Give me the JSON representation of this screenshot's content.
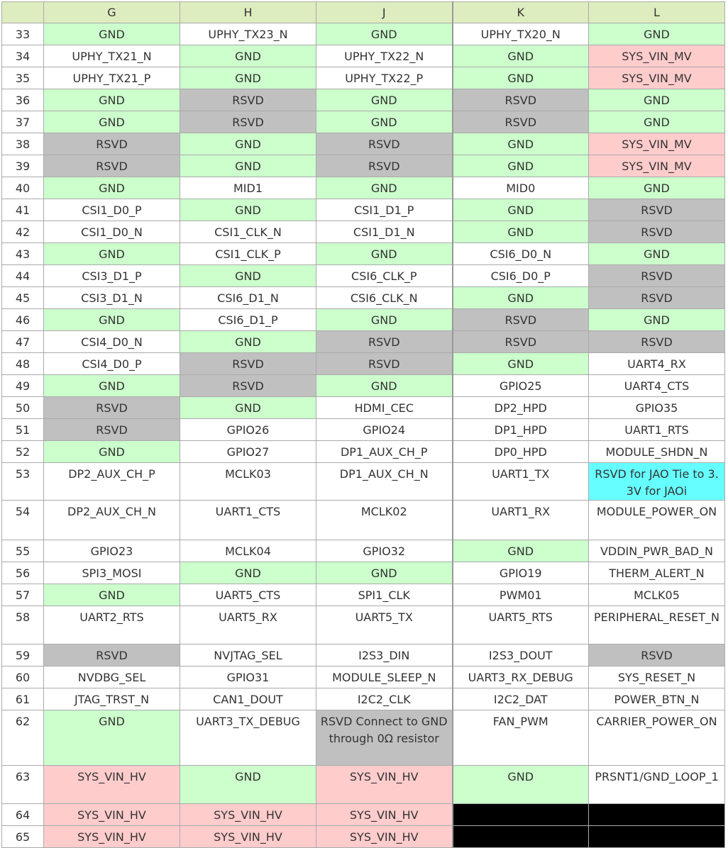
{
  "colors": {
    "w": "#ffffff",
    "g": "#ccffcc",
    "r": "#ffcccc",
    "x": "#c0c0c0",
    "c": "#66ffff",
    "k": "#000000",
    "header": "#deedc0"
  },
  "columns": [
    "",
    "G",
    "H",
    "J",
    "K",
    "L"
  ],
  "rows": [
    {
      "n": "33",
      "cells": [
        [
          "GND",
          "g"
        ],
        [
          "UPHY_TX23_N",
          "w"
        ],
        [
          "GND",
          "g"
        ],
        [
          "UPHY_TX20_N",
          "w"
        ],
        [
          "GND",
          "g"
        ]
      ]
    },
    {
      "n": "34",
      "cells": [
        [
          "UPHY_TX21_N",
          "w"
        ],
        [
          "GND",
          "g"
        ],
        [
          "UPHY_TX22_N",
          "w"
        ],
        [
          "GND",
          "g"
        ],
        [
          "SYS_VIN_MV",
          "r"
        ]
      ]
    },
    {
      "n": "35",
      "cells": [
        [
          "UPHY_TX21_P",
          "w"
        ],
        [
          "GND",
          "g"
        ],
        [
          "UPHY_TX22_P",
          "w"
        ],
        [
          "GND",
          "g"
        ],
        [
          "SYS_VIN_MV",
          "r"
        ]
      ]
    },
    {
      "n": "36",
      "cells": [
        [
          "GND",
          "g"
        ],
        [
          "RSVD",
          "x"
        ],
        [
          "GND",
          "g"
        ],
        [
          "RSVD",
          "x"
        ],
        [
          "GND",
          "g"
        ]
      ]
    },
    {
      "n": "37",
      "cells": [
        [
          "GND",
          "g"
        ],
        [
          "RSVD",
          "x"
        ],
        [
          "GND",
          "g"
        ],
        [
          "RSVD",
          "x"
        ],
        [
          "GND",
          "g"
        ]
      ]
    },
    {
      "n": "38",
      "cells": [
        [
          "RSVD",
          "x"
        ],
        [
          "GND",
          "g"
        ],
        [
          "RSVD",
          "x"
        ],
        [
          "GND",
          "g"
        ],
        [
          "SYS_VIN_MV",
          "r"
        ]
      ]
    },
    {
      "n": "39",
      "cells": [
        [
          "RSVD",
          "x"
        ],
        [
          "GND",
          "g"
        ],
        [
          "RSVD",
          "x"
        ],
        [
          "GND",
          "g"
        ],
        [
          "SYS_VIN_MV",
          "r"
        ]
      ]
    },
    {
      "n": "40",
      "cells": [
        [
          "GND",
          "g"
        ],
        [
          "MID1",
          "w"
        ],
        [
          "GND",
          "g"
        ],
        [
          "MID0",
          "w"
        ],
        [
          "GND",
          "g"
        ]
      ]
    },
    {
      "n": "41",
      "cells": [
        [
          "CSI1_D0_P",
          "w"
        ],
        [
          "GND",
          "g"
        ],
        [
          "CSI1_D1_P",
          "w"
        ],
        [
          "GND",
          "g"
        ],
        [
          "RSVD",
          "x"
        ]
      ]
    },
    {
      "n": "42",
      "cells": [
        [
          "CSI1_D0_N",
          "w"
        ],
        [
          "CSI1_CLK_N",
          "w"
        ],
        [
          "CSI1_D1_N",
          "w"
        ],
        [
          "GND",
          "g"
        ],
        [
          "RSVD",
          "x"
        ]
      ]
    },
    {
      "n": "43",
      "cells": [
        [
          "GND",
          "g"
        ],
        [
          "CSI1_CLK_P",
          "w"
        ],
        [
          "GND",
          "g"
        ],
        [
          "CSI6_D0_N",
          "w"
        ],
        [
          "GND",
          "g"
        ]
      ]
    },
    {
      "n": "44",
      "cells": [
        [
          "CSI3_D1_P",
          "w"
        ],
        [
          "GND",
          "g"
        ],
        [
          "CSI6_CLK_P",
          "w"
        ],
        [
          "CSI6_D0_P",
          "w"
        ],
        [
          "RSVD",
          "x"
        ]
      ]
    },
    {
      "n": "45",
      "cells": [
        [
          "CSI3_D1_N",
          "w"
        ],
        [
          "CSI6_D1_N",
          "w"
        ],
        [
          "CSI6_CLK_N",
          "w"
        ],
        [
          "GND",
          "g"
        ],
        [
          "RSVD",
          "x"
        ]
      ]
    },
    {
      "n": "46",
      "cells": [
        [
          "GND",
          "g"
        ],
        [
          "CSI6_D1_P",
          "w"
        ],
        [
          "GND",
          "g"
        ],
        [
          "RSVD",
          "x"
        ],
        [
          "GND",
          "g"
        ]
      ]
    },
    {
      "n": "47",
      "cells": [
        [
          "CSI4_D0_N",
          "w"
        ],
        [
          "GND",
          "g"
        ],
        [
          "RSVD",
          "x"
        ],
        [
          "RSVD",
          "x"
        ],
        [
          "RSVD",
          "x"
        ]
      ]
    },
    {
      "n": "48",
      "cells": [
        [
          "CSI4_D0_P",
          "w"
        ],
        [
          "RSVD",
          "x"
        ],
        [
          "RSVD",
          "x"
        ],
        [
          "GND",
          "g"
        ],
        [
          "UART4_RX",
          "w"
        ]
      ]
    },
    {
      "n": "49",
      "cells": [
        [
          "GND",
          "g"
        ],
        [
          "RSVD",
          "x"
        ],
        [
          "GND",
          "g"
        ],
        [
          "GPIO25",
          "w"
        ],
        [
          "UART4_CTS",
          "w"
        ]
      ]
    },
    {
      "n": "50",
      "cells": [
        [
          "RSVD",
          "x"
        ],
        [
          "GND",
          "g"
        ],
        [
          "HDMI_CEC",
          "w"
        ],
        [
          "DP2_HPD",
          "w"
        ],
        [
          "GPIO35",
          "w"
        ]
      ]
    },
    {
      "n": "51",
      "cells": [
        [
          "RSVD",
          "x"
        ],
        [
          "GPIO26",
          "w"
        ],
        [
          "GPIO24",
          "w"
        ],
        [
          "DP1_HPD",
          "w"
        ],
        [
          "UART1_RTS",
          "w"
        ]
      ]
    },
    {
      "n": "52",
      "cells": [
        [
          "GND",
          "g"
        ],
        [
          "GPIO27",
          "w"
        ],
        [
          "DP1_AUX_CH_P",
          "w"
        ],
        [
          "DP0_HPD",
          "w"
        ],
        [
          "MODULE_SHDN_N",
          "w"
        ]
      ]
    },
    {
      "n": "53",
      "h": 48,
      "cells": [
        [
          "DP2_AUX_CH_P",
          "w"
        ],
        [
          "MCLK03",
          "w"
        ],
        [
          "DP1_AUX_CH_N",
          "w"
        ],
        [
          "UART1_TX",
          "w"
        ],
        [
          "RSVD for JAO Tie to 3.3V for JAOi",
          "c"
        ]
      ]
    },
    {
      "n": "54",
      "h": 51,
      "cells": [
        [
          "DP2_AUX_CH_N",
          "w"
        ],
        [
          "UART1_CTS",
          "w"
        ],
        [
          "MCLK02",
          "w"
        ],
        [
          "UART1_RX",
          "w"
        ],
        [
          "MODULE_POWER_ON",
          "w"
        ]
      ]
    },
    {
      "n": "55",
      "cells": [
        [
          "GPIO23",
          "w"
        ],
        [
          "MCLK04",
          "w"
        ],
        [
          "GPIO32",
          "w"
        ],
        [
          "GND",
          "g"
        ],
        [
          "VDDIN_PWR_BAD_N",
          "w"
        ]
      ]
    },
    {
      "n": "56",
      "cells": [
        [
          "SPI3_MOSI",
          "w"
        ],
        [
          "GND",
          "g"
        ],
        [
          "GND",
          "g"
        ],
        [
          "GPIO19",
          "w"
        ],
        [
          "THERM_ALERT_N",
          "w"
        ]
      ]
    },
    {
      "n": "57",
      "cells": [
        [
          "GND",
          "g"
        ],
        [
          "UART5_CTS",
          "w"
        ],
        [
          "SPI1_CLK",
          "w"
        ],
        [
          "PWM01",
          "w"
        ],
        [
          "MCLK05",
          "w"
        ]
      ]
    },
    {
      "n": "58",
      "h": 49,
      "cells": [
        [
          "UART2_RTS",
          "w"
        ],
        [
          "UART5_RX",
          "w"
        ],
        [
          "UART5_TX",
          "w"
        ],
        [
          "UART5_RTS",
          "w"
        ],
        [
          "PERIPHERAL_RESET_N",
          "w"
        ]
      ]
    },
    {
      "n": "59",
      "cells": [
        [
          "RSVD",
          "x"
        ],
        [
          "NVJTAG_SEL",
          "w"
        ],
        [
          "I2S3_DIN",
          "w"
        ],
        [
          "I2S3_DOUT",
          "w"
        ],
        [
          "RSVD",
          "x"
        ]
      ]
    },
    {
      "n": "60",
      "cells": [
        [
          "NVDBG_SEL",
          "w"
        ],
        [
          "GPIO31",
          "w"
        ],
        [
          "MODULE_SLEEP_N",
          "w"
        ],
        [
          "UART3_RX_DEBUG",
          "w"
        ],
        [
          "SYS_RESET_N",
          "w"
        ]
      ]
    },
    {
      "n": "61",
      "cells": [
        [
          "JTAG_TRST_N",
          "w"
        ],
        [
          "CAN1_DOUT",
          "w"
        ],
        [
          "I2C2_CLK",
          "w"
        ],
        [
          "I2C2_DAT",
          "w"
        ],
        [
          "POWER_BTN_N",
          "w"
        ]
      ]
    },
    {
      "n": "62",
      "h": 73,
      "cells": [
        [
          "GND",
          "g"
        ],
        [
          "UART3_TX_DEBUG",
          "w"
        ],
        [
          "RSVD Connect to GND through 0Ω resistor",
          "x"
        ],
        [
          "FAN_PWM",
          "w"
        ],
        [
          "CARRIER_POWER_ON",
          "w"
        ]
      ]
    },
    {
      "n": "63",
      "h": 49,
      "cells": [
        [
          "SYS_VIN_HV",
          "r"
        ],
        [
          "GND",
          "g"
        ],
        [
          "SYS_VIN_HV",
          "r"
        ],
        [
          "GND",
          "g"
        ],
        [
          "PRSNT1/GND_LOOP_1",
          "w"
        ]
      ]
    },
    {
      "n": "64",
      "cells": [
        [
          "SYS_VIN_HV",
          "r"
        ],
        [
          "SYS_VIN_HV",
          "r"
        ],
        [
          "SYS_VIN_HV",
          "r"
        ],
        [
          "",
          "k"
        ],
        [
          "",
          "k"
        ]
      ]
    },
    {
      "n": "65",
      "cells": [
        [
          "SYS_VIN_HV",
          "r"
        ],
        [
          "SYS_VIN_HV",
          "r"
        ],
        [
          "SYS_VIN_HV",
          "r"
        ],
        [
          "",
          "k"
        ],
        [
          "",
          "k"
        ]
      ]
    }
  ]
}
